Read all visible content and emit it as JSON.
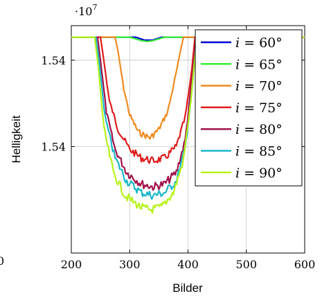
{
  "chart_data": {
    "type": "line",
    "xlabel": "Bilder",
    "ylabel": "Helligkeit",
    "y_multiplier": "·10",
    "y_multiplier_exp": "7",
    "x_ticks": [
      "200",
      "300",
      "400",
      "500",
      "600"
    ],
    "y_ticks": [
      "1.54",
      "1.54"
    ],
    "cut_left_label": "0",
    "xlim": [
      200,
      600
    ],
    "ylim": [
      1.5375,
      1.5454
    ],
    "grid": true,
    "legend_position": "top-right",
    "legend_prefix": "i",
    "series": [
      {
        "name": "= 60°",
        "color": "#0000d8",
        "x": [
          200,
          240,
          310,
          325,
          340,
          355,
          420,
          600
        ],
        "y": [
          1.545,
          1.545,
          1.545,
          1.5449,
          1.5449,
          1.545,
          1.545,
          1.545
        ]
      },
      {
        "name": "= 65°",
        "color": "#33ee33",
        "x": [
          200,
          245,
          300,
          320,
          330,
          340,
          360,
          400,
          600
        ],
        "y": [
          1.545,
          1.545,
          1.545,
          1.54488,
          1.54485,
          1.54488,
          1.545,
          1.545,
          1.545
        ]
      },
      {
        "name": "= 70°",
        "color": "#f08a1e",
        "x": [
          200,
          275,
          280,
          290,
          300,
          315,
          335,
          350,
          365,
          375,
          385,
          392,
          600
        ],
        "y": [
          1.545,
          1.545,
          1.5445,
          1.5432,
          1.5423,
          1.5417,
          1.5415,
          1.5418,
          1.5424,
          1.5433,
          1.5443,
          1.545,
          1.545
        ]
      },
      {
        "name": "= 75°",
        "color": "#e01a1a",
        "x": [
          200,
          250,
          255,
          265,
          280,
          300,
          320,
          340,
          360,
          380,
          395,
          405,
          412,
          600
        ],
        "y": [
          1.545,
          1.545,
          1.5443,
          1.5428,
          1.5418,
          1.5411,
          1.5408,
          1.5407,
          1.5408,
          1.5412,
          1.5422,
          1.5436,
          1.545,
          1.545
        ]
      },
      {
        "name": "= 80°",
        "color": "#a1124a",
        "x": [
          200,
          245,
          250,
          260,
          275,
          295,
          320,
          340,
          360,
          380,
          395,
          405,
          414,
          600
        ],
        "y": [
          1.545,
          1.545,
          1.5442,
          1.5424,
          1.5411,
          1.5403,
          1.5399,
          1.5398,
          1.5399,
          1.5403,
          1.5414,
          1.5432,
          1.545,
          1.545
        ]
      },
      {
        "name": "= 85°",
        "color": "#19b6c8",
        "x": [
          200,
          242,
          248,
          258,
          275,
          295,
          320,
          340,
          360,
          380,
          395,
          406,
          415,
          600
        ],
        "y": [
          1.545,
          1.545,
          1.5441,
          1.5422,
          1.5408,
          1.54,
          1.5396,
          1.5395,
          1.5396,
          1.54,
          1.5411,
          1.543,
          1.545,
          1.545
        ]
      },
      {
        "name": "= 90°",
        "color": "#b7f21a",
        "x": [
          200,
          240,
          246,
          256,
          272,
          292,
          318,
          335,
          355,
          375,
          392,
          405,
          415,
          600
        ],
        "y": [
          1.545,
          1.545,
          1.544,
          1.5418,
          1.5403,
          1.5395,
          1.5391,
          1.539,
          1.5391,
          1.5396,
          1.5407,
          1.5428,
          1.545,
          1.545
        ]
      }
    ]
  }
}
